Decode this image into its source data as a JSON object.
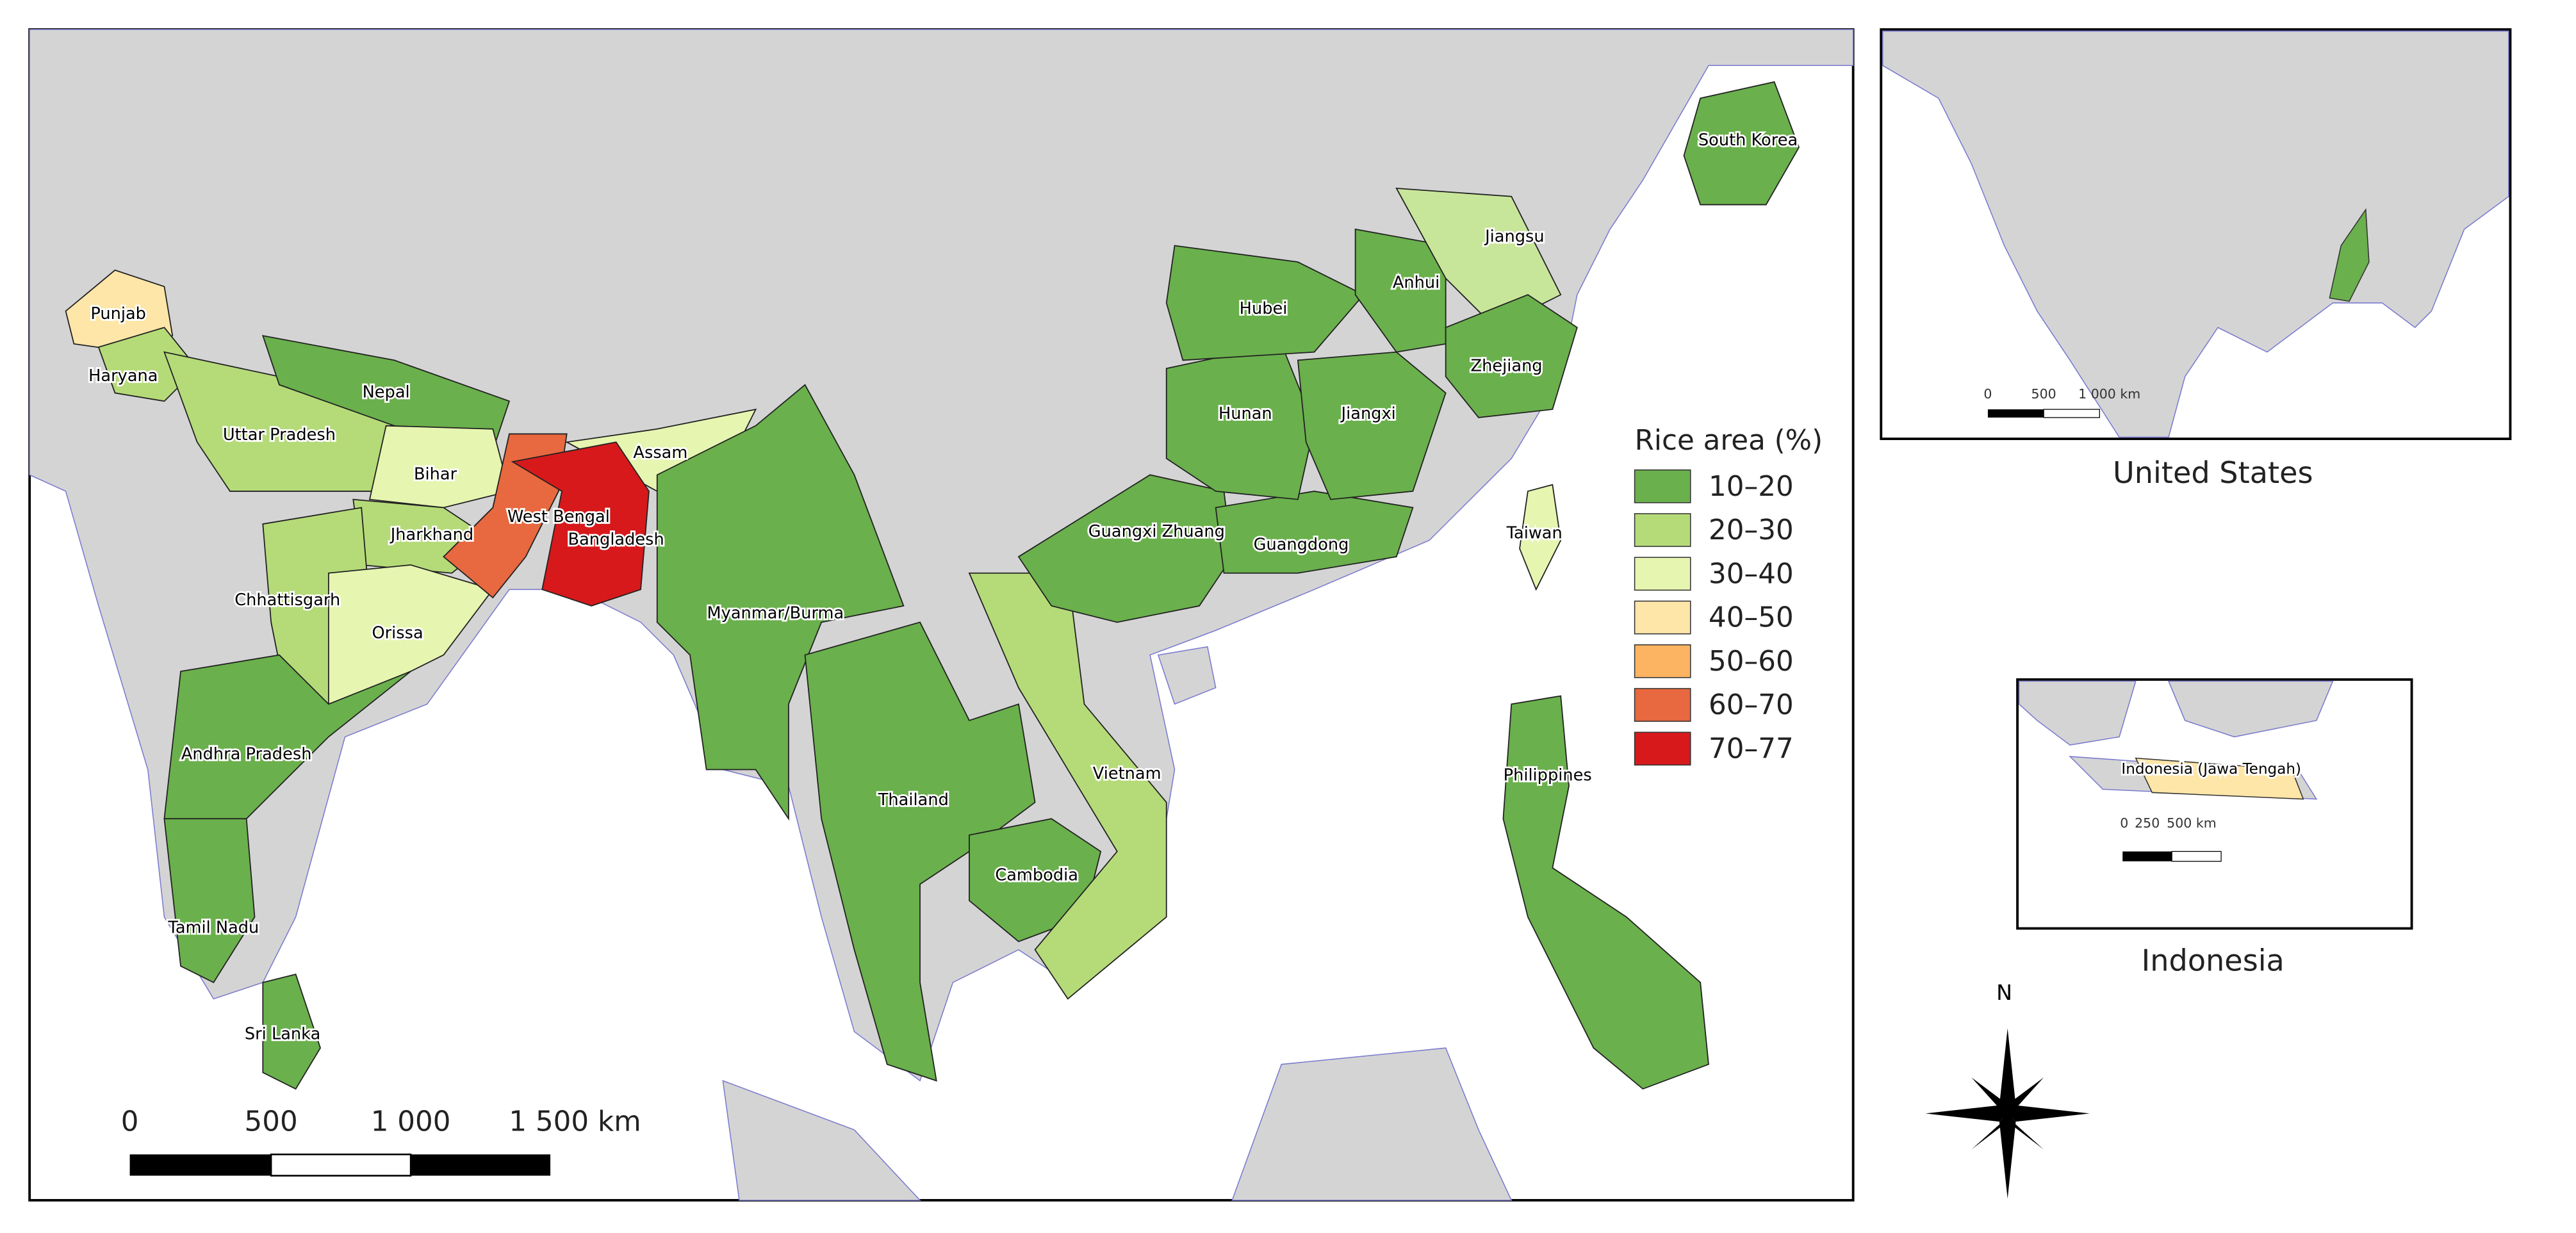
{
  "regions": [
    {
      "name": "Punjab",
      "color": "#fde6a8"
    },
    {
      "name": "Haryana",
      "color": "#b5db79"
    },
    {
      "name": "Uttar Pradesh",
      "color": "#b5db79"
    },
    {
      "name": "Nepal",
      "color": "#6ab04c"
    },
    {
      "name": "Bihar",
      "color": "#e6f5b0"
    },
    {
      "name": "Jharkhand",
      "color": "#b5db79"
    },
    {
      "name": "Assam",
      "color": "#e6f5b0"
    },
    {
      "name": "Chhattisgarh",
      "color": "#b5db79"
    },
    {
      "name": "Orissa",
      "color": "#e6f5b0"
    },
    {
      "name": "Andhra Pradesh",
      "color": "#6ab04c"
    },
    {
      "name": "Tamil Nadu",
      "color": "#6ab04c"
    },
    {
      "name": "Sri Lanka",
      "color": "#6ab04c"
    },
    {
      "name": "West Bengal",
      "color": "#e8683f"
    },
    {
      "name": "Bangladesh",
      "color": "#d7191c"
    },
    {
      "name": "Myanmar/Burma",
      "color": "#6ab04c"
    },
    {
      "name": "Thailand",
      "color": "#6ab04c"
    },
    {
      "name": "Cambodia",
      "color": "#6ab04c"
    },
    {
      "name": "Vietnam",
      "color": "#b5db79"
    },
    {
      "name": "Guangxi Zhuang",
      "color": "#6ab04c"
    },
    {
      "name": "Guangdong",
      "color": "#6ab04c"
    },
    {
      "name": "Hunan",
      "color": "#6ab04c"
    },
    {
      "name": "Jiangxi",
      "color": "#6ab04c"
    },
    {
      "name": "Hubei",
      "color": "#6ab04c"
    },
    {
      "name": "Anhui",
      "color": "#6ab04c"
    },
    {
      "name": "Jiangsu",
      "color": "#c8e69a"
    },
    {
      "name": "Zhejiang",
      "color": "#6ab04c"
    },
    {
      "name": "South Korea",
      "color": "#6ab04c"
    },
    {
      "name": "Taiwan",
      "color": "#e6f5b0"
    },
    {
      "name": "Philippines",
      "color": "#6ab04c"
    }
  ],
  "legend": {
    "title": "Rice area (%)",
    "items": [
      {
        "label": "10–20",
        "color": "#6ab04c"
      },
      {
        "label": "20–30",
        "color": "#b5db79"
      },
      {
        "label": "30–40",
        "color": "#e6f5b0"
      },
      {
        "label": "40–50",
        "color": "#fde6a8"
      },
      {
        "label": "50–60",
        "color": "#fdb462"
      },
      {
        "label": "60–70",
        "color": "#e8683f"
      },
      {
        "label": "70–77",
        "color": "#d7191c"
      }
    ]
  },
  "scale_bar": {
    "labels": [
      "0",
      "500",
      "1 000",
      "1 500 km"
    ]
  },
  "insets": [
    {
      "title": "United States",
      "scale_labels": [
        "0",
        "500",
        "1 000 km"
      ],
      "region_color": "#6ab04c"
    },
    {
      "title": "Indonesia",
      "region": "Indonesia (Jawa Tengah)",
      "scale_labels": [
        "0",
        "250",
        "500 km"
      ],
      "region_color": "#fde6a8"
    }
  ],
  "compass": "N"
}
